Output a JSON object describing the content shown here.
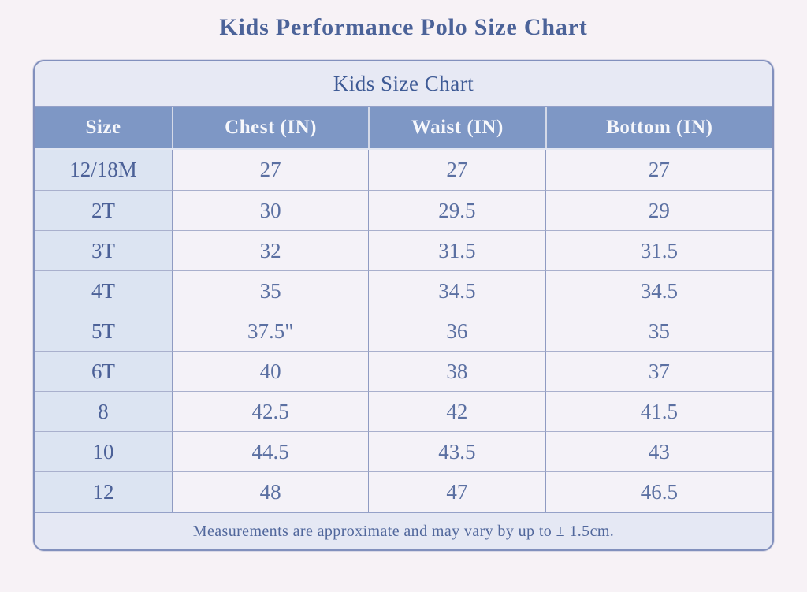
{
  "page_title": "Kids Performance Polo Size Chart",
  "chart_data": {
    "type": "table",
    "caption": "Kids Size Chart",
    "columns": [
      "Size",
      "Chest (IN)",
      "Waist (IN)",
      "Bottom (IN)"
    ],
    "rows": [
      [
        "12/18M",
        "27",
        "27",
        "27"
      ],
      [
        "2T",
        "30",
        "29.5",
        "29"
      ],
      [
        "3T",
        "32",
        "31.5",
        "31.5"
      ],
      [
        "4T",
        "35",
        "34.5",
        "34.5"
      ],
      [
        "5T",
        "37.5\"",
        "36",
        "35"
      ],
      [
        "6T",
        "40",
        "38",
        "37"
      ],
      [
        "8",
        "42.5",
        "42",
        "41.5"
      ],
      [
        "10",
        "44.5",
        "43.5",
        "43"
      ],
      [
        "12",
        "48",
        "47",
        "46.5"
      ]
    ],
    "footnote": "Measurements are approximate and may vary by up to ± 1.5cm."
  },
  "colors": {
    "page_bg": "#f7f2f6",
    "table_border": "#8290bd",
    "caption_bg": "#e7e9f4",
    "header_bg": "#7e97c5",
    "header_text": "#f6f7fb",
    "size_col_bg": "#dce4f2",
    "cell_bg": "#f4f2f8",
    "title_text": "#4c6399",
    "caption_text": "#3e5a95",
    "size_text": "#4c6198",
    "data_text": "#5b70a2",
    "footer_bg": "#e5e8f4",
    "footer_text": "#51679c"
  }
}
